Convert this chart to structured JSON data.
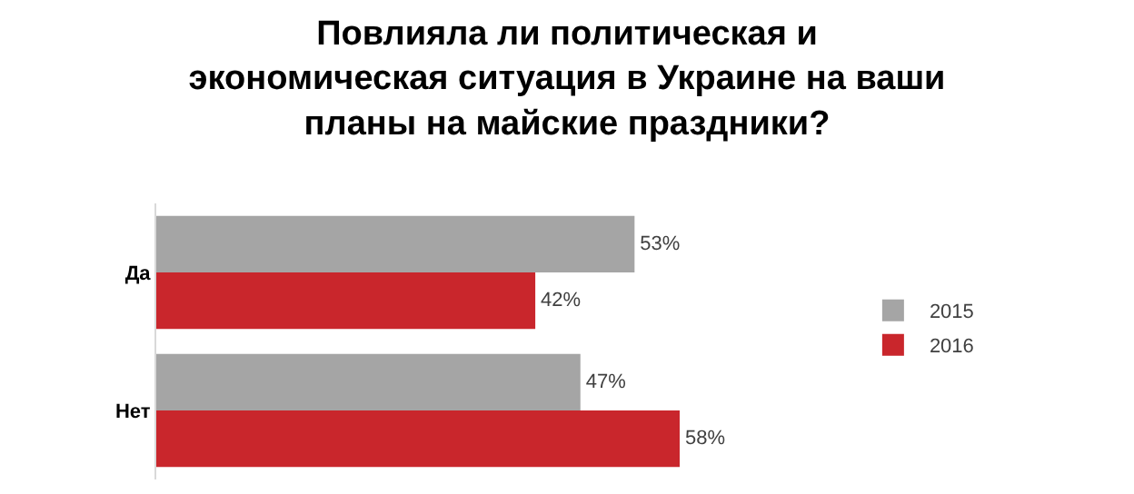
{
  "chart_data": {
    "type": "bar",
    "orientation": "horizontal",
    "title": "Повлияла ли политическая и экономическая ситуация в Украине на ваши планы на майские праздники?",
    "categories": [
      "Да",
      "Нет"
    ],
    "series": [
      {
        "name": "2015",
        "color": "#a5a5a5",
        "values": [
          53,
          47
        ],
        "value_labels": [
          "53%",
          "47%"
        ]
      },
      {
        "name": "2016",
        "color": "#c9262c",
        "values": [
          42,
          58
        ],
        "value_labels": [
          "42%",
          "58%"
        ]
      }
    ],
    "legend": "right",
    "grid": false
  }
}
